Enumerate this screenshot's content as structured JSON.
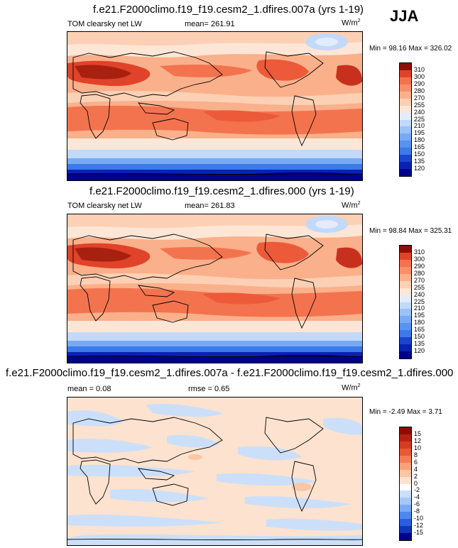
{
  "season": "JJA",
  "colors": {
    "abs_levels": [
      "#00008b",
      "#0a22b4",
      "#1b45cf",
      "#2a5fe0",
      "#3d7ae8",
      "#5793ef",
      "#78aaf4",
      "#9dc2f7",
      "#c2d9fa",
      "#e2ecfb",
      "#fde6d6",
      "#fcd0b4",
      "#fab08a",
      "#f7906a",
      "#f3734f",
      "#ec5a3a",
      "#e0432a",
      "#c8301e",
      "#a8200f",
      "#8b1106"
    ],
    "diff_levels": [
      "#00008b",
      "#1137b8",
      "#2b5fe0",
      "#4f88ee",
      "#7ba9f4",
      "#a6c7f8",
      "#cbdff9",
      "#ffffff",
      "#fde2cf",
      "#fbc6a6",
      "#f8a27c",
      "#f37d57",
      "#e65a38",
      "#d43d24",
      "#b52214",
      "#8b0d04"
    ]
  },
  "panels": [
    {
      "title": "f.e21.F2000climo.f19_f19.cesm2_1.dfires.007a (yrs 1-19)",
      "left_label": "TOM clearsky net LW",
      "center_label": "mean= 261.91",
      "units": "W/m",
      "units_sup": "2",
      "range_label": "Min =  98.16 Max = 326.02",
      "legend_levels": [
        "310",
        "300",
        "290",
        "280",
        "270",
        "255",
        "240",
        "225",
        "210",
        "195",
        "180",
        "165",
        "150",
        "135",
        "120"
      ]
    },
    {
      "title": "f.e21.F2000climo.f19_f19.cesm2_1.dfires.000 (yrs 1-19)",
      "left_label": "TOM clearsky net LW",
      "center_label": "mean= 261.83",
      "units": "W/m",
      "units_sup": "2",
      "range_label": "Min =  98.84 Max = 325.31",
      "legend_levels": [
        "310",
        "300",
        "290",
        "280",
        "270",
        "255",
        "240",
        "225",
        "210",
        "195",
        "180",
        "165",
        "150",
        "135",
        "120"
      ]
    },
    {
      "title": "f.e21.F2000climo.f19_f19.cesm2_1.dfires.007a - f.e21.F2000climo.f19_f19.cesm2_1.dfires.000",
      "left_label": "mean =   0.08",
      "center_label": "rmse =   0.65",
      "units": "W/m",
      "units_sup": "2",
      "range_label": "Min =  -2.49 Max =   3.71",
      "legend_levels": [
        "15",
        "12",
        "10",
        "8",
        "6",
        "4",
        "2",
        "0",
        "-2",
        "-4",
        "-6",
        "-8",
        "-10",
        "-12",
        "-15"
      ]
    }
  ],
  "chart_data": [
    {
      "type": "heatmap",
      "title": "f.e21.F2000climo.f19_f19.cesm2_1.dfires.007a (yrs 1-19)",
      "variable": "TOM clearsky net LW",
      "units": "W/m2",
      "season": "JJA",
      "mean": 261.91,
      "min": 98.16,
      "max": 326.02,
      "contour_levels": [
        120,
        135,
        150,
        165,
        180,
        195,
        210,
        225,
        240,
        255,
        270,
        280,
        290,
        300,
        310
      ]
    },
    {
      "type": "heatmap",
      "title": "f.e21.F2000climo.f19_f19.cesm2_1.dfires.000 (yrs 1-19)",
      "variable": "TOM clearsky net LW",
      "units": "W/m2",
      "season": "JJA",
      "mean": 261.83,
      "min": 98.84,
      "max": 325.31,
      "contour_levels": [
        120,
        135,
        150,
        165,
        180,
        195,
        210,
        225,
        240,
        255,
        270,
        280,
        290,
        300,
        310
      ]
    },
    {
      "type": "heatmap",
      "title": "f.e21.F2000climo.f19_f19.cesm2_1.dfires.007a - f.e21.F2000climo.f19_f19.cesm2_1.dfires.000",
      "units": "W/m2",
      "mean": 0.08,
      "rmse": 0.65,
      "min": -2.49,
      "max": 3.71,
      "contour_levels": [
        -15,
        -12,
        -10,
        -8,
        -6,
        -4,
        -2,
        0,
        2,
        4,
        6,
        8,
        10,
        12,
        15
      ]
    }
  ]
}
